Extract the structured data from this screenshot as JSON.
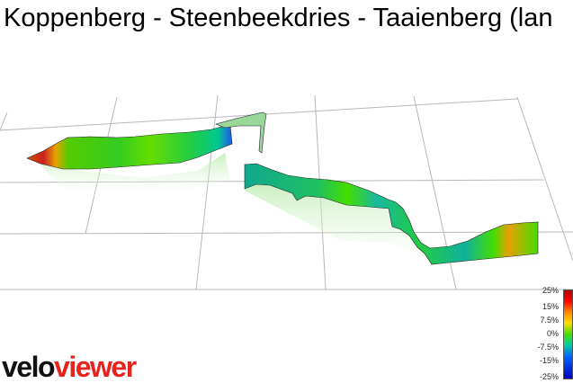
{
  "title": "Koppenberg - Steenbeekdries - Taaienberg (lan",
  "legend": {
    "labels": [
      "25%",
      "15%",
      "7.5%",
      "0%",
      "-7.5%",
      "-15%",
      "-25%"
    ],
    "colors": [
      "#b00000",
      "#ff0000",
      "#ff8800",
      "#ffdd00",
      "#44dd00",
      "#00d0a0",
      "#0066ff",
      "#0000c0"
    ]
  },
  "logo": {
    "part1": "velo",
    "part2": "viewer"
  }
}
